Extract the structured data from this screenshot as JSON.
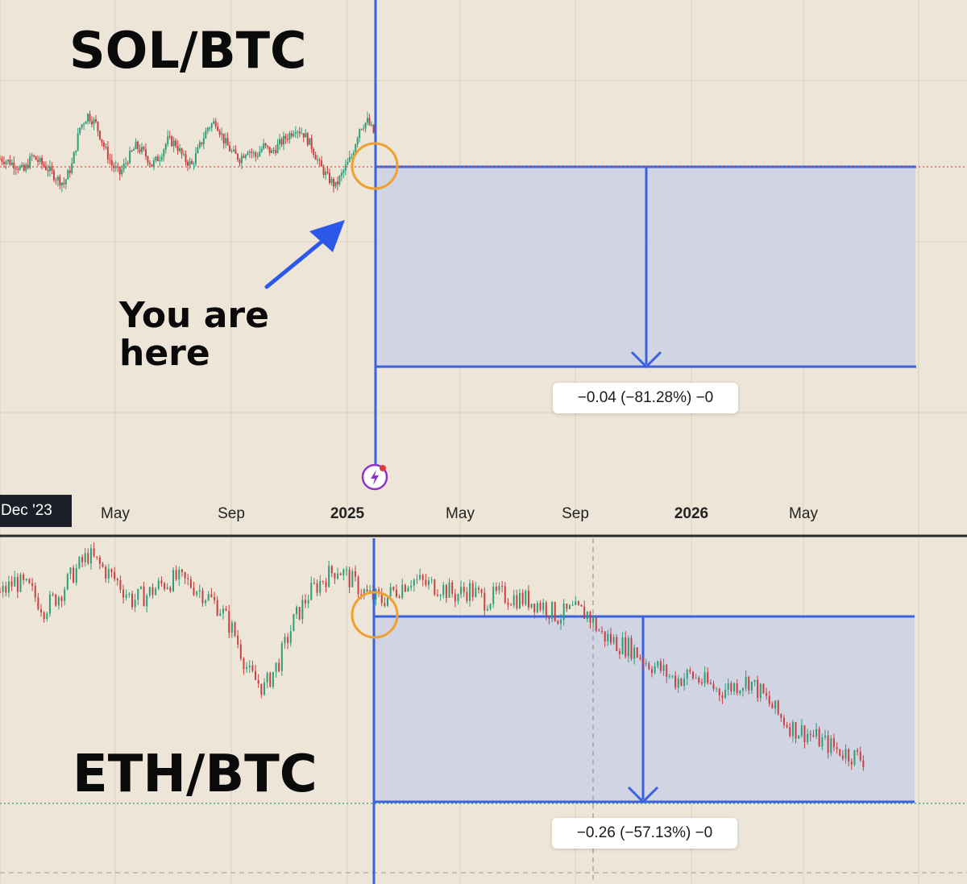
{
  "chart_data": [
    {
      "type": "line",
      "pane": "top",
      "title": "SOL/BTC",
      "x_tick_labels": [
        "Dec '23",
        "May",
        "Sep",
        "2025",
        "May",
        "Sep",
        "2026",
        "May"
      ],
      "bold_ticks": [
        "2025",
        "2026"
      ],
      "annotation": "You are here",
      "measurement": {
        "label": "−0.04 (−81.28%) −0",
        "change": -0.04,
        "percent": -81.28
      },
      "series": [
        {
          "values": [
            0.6,
            0.58,
            0.55,
            0.5,
            0.62,
            0.57,
            0.52,
            0.45,
            0.4,
            0.55,
            0.85,
            0.95,
            0.88,
            0.7,
            0.55,
            0.48,
            0.6,
            0.7,
            0.65,
            0.55,
            0.62,
            0.75,
            0.72,
            0.6,
            0.55,
            0.7,
            0.85,
            0.9,
            0.75,
            0.65,
            0.6,
            0.68,
            0.62,
            0.7,
            0.65,
            0.72,
            0.78,
            0.85,
            0.8,
            0.7,
            0.55,
            0.45,
            0.38,
            0.5,
            0.62,
            0.85,
            0.9,
            0.78
          ]
        }
      ]
    },
    {
      "type": "line",
      "pane": "bottom",
      "title": "ETH/BTC",
      "measurement": {
        "label": "−0.26 (−57.13%) −0",
        "change": -0.26,
        "percent": -57.13
      },
      "series": [
        {
          "values": [
            0.8,
            0.85,
            0.82,
            0.75,
            0.8,
            0.88,
            0.95,
            0.9,
            0.85,
            0.78,
            0.8,
            0.84,
            0.86,
            0.84,
            0.8,
            0.75,
            0.65,
            0.5,
            0.45,
            0.55,
            0.7,
            0.8,
            0.86,
            0.9,
            0.85,
            0.8,
            0.78,
            0.82,
            0.86,
            0.84,
            0.83,
            0.8,
            0.82,
            0.78,
            0.8,
            0.79,
            0.78,
            0.76,
            0.72,
            0.74,
            0.73,
            0.65,
            0.62,
            0.6,
            0.55,
            0.52,
            0.48,
            0.5,
            0.47,
            0.44,
            0.46,
            0.48,
            0.42,
            0.35,
            0.3,
            0.28,
            0.25,
            0.22,
            0.2,
            0.18
          ]
        }
      ]
    }
  ],
  "colors": {
    "background": "#ede6d8",
    "measure_line": "#3a62e0",
    "measure_fill": "#c9d0e6",
    "highlight_circle": "#f0a030",
    "price_line_top": "#e05050",
    "price_line_bottom": "#3aa060",
    "candle_up": "#2e9e78",
    "candle_down": "#c84040",
    "pointer_arrow": "#2b58e8",
    "event_icon": "#8e33c8"
  },
  "icons": {
    "event": "lightning-icon"
  }
}
